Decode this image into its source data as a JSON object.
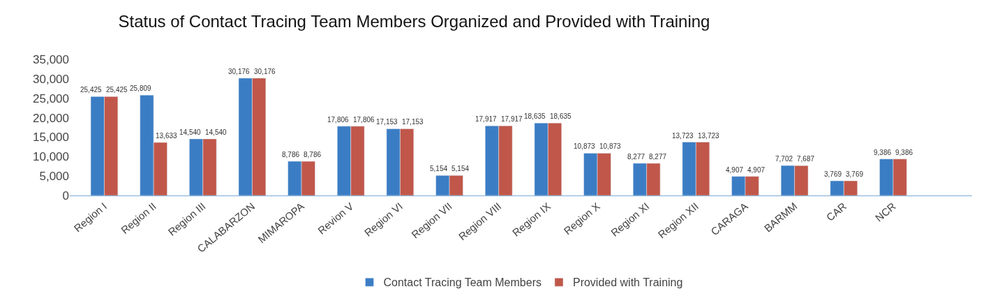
{
  "chart_data": {
    "type": "bar",
    "title": "Status of Contact Tracing Team Members Organized and Provided with Training",
    "categories": [
      "Region I",
      "Region II",
      "Region III",
      "CALABARZON",
      "MIMAROPA",
      "Revion V",
      "Region VI",
      "Region VII",
      "Region VIII",
      "Region IX",
      "Region X",
      "Region XI",
      "Region XII",
      "CARAGA",
      "BARMM",
      "CAR",
      "NCR"
    ],
    "series": [
      {
        "name": "Contact Tracing Team Members",
        "color": "#3b7dc4",
        "values": [
          25425,
          25809,
          14540,
          30176,
          8786,
          17806,
          17153,
          5154,
          17917,
          18635,
          10873,
          8277,
          13723,
          4907,
          7702,
          3769,
          9386
        ],
        "value_labels": [
          "25,425",
          "25,809",
          "14,540",
          "30,176",
          "8,786",
          "17,806",
          "17,153",
          "5,154",
          "17,917",
          "18,635",
          "10,873",
          "8,277",
          "13,723",
          "4,907",
          "7,702",
          "3,769",
          "9,386"
        ]
      },
      {
        "name": "Provided with Training",
        "color": "#c0574a",
        "values": [
          25425,
          13633,
          14540,
          30176,
          8786,
          17806,
          17153,
          5154,
          17917,
          18635,
          10873,
          8277,
          13723,
          4907,
          7687,
          3769,
          9386
        ],
        "value_labels": [
          "25,425",
          "13,633",
          "14,540",
          "30,176",
          "8,786",
          "17,806",
          "17,153",
          "5,154",
          "17,917",
          "18,635",
          "10,873",
          "8,277",
          "13,723",
          "4,907",
          "7,687",
          "3,769",
          "9,386"
        ]
      }
    ],
    "ylim": [
      0,
      35000
    ],
    "yticks": [
      {
        "value": 0,
        "label": "0"
      },
      {
        "value": 5000,
        "label": "5,000"
      },
      {
        "value": 10000,
        "label": "10,000"
      },
      {
        "value": 15000,
        "label": "15,000"
      },
      {
        "value": 20000,
        "label": "20,000"
      },
      {
        "value": 25000,
        "label": "25,000"
      },
      {
        "value": 30000,
        "label": "30,000"
      },
      {
        "value": 35000,
        "label": "35,000"
      }
    ],
    "legend": "bottom"
  }
}
